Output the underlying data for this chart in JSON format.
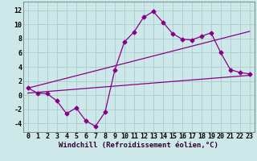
{
  "background_color": "#cce8e8",
  "grid_color": "#aacccc",
  "line_color": "#880088",
  "marker": "D",
  "marker_size": 2.5,
  "xlabel": "Windchill (Refroidissement éolien,°C)",
  "xlabel_fontsize": 6.5,
  "tick_fontsize": 6.0,
  "xlim": [
    -0.5,
    23.5
  ],
  "ylim": [
    -5.2,
    13.2
  ],
  "yticks": [
    -4,
    -2,
    0,
    2,
    4,
    6,
    8,
    10,
    12
  ],
  "xticks": [
    0,
    1,
    2,
    3,
    4,
    5,
    6,
    7,
    8,
    9,
    10,
    11,
    12,
    13,
    14,
    15,
    16,
    17,
    18,
    19,
    20,
    21,
    22,
    23
  ],
  "line1_x": [
    0,
    1,
    2,
    3,
    4,
    5,
    6,
    7,
    8,
    9,
    10,
    11,
    12,
    13,
    14,
    15,
    16,
    17,
    18,
    19,
    20,
    21,
    22,
    23
  ],
  "line1_y": [
    1.0,
    0.3,
    0.2,
    -0.8,
    -2.6,
    -1.8,
    -3.6,
    -4.4,
    -2.4,
    3.5,
    7.5,
    8.9,
    11.0,
    11.8,
    10.3,
    8.7,
    7.9,
    7.8,
    8.3,
    8.8,
    6.0,
    3.6,
    3.2,
    3.0
  ],
  "line2_x": [
    0,
    23
  ],
  "line2_y": [
    1.0,
    9.0
  ],
  "line3_x": [
    0,
    23
  ],
  "line3_y": [
    0.3,
    2.8
  ]
}
